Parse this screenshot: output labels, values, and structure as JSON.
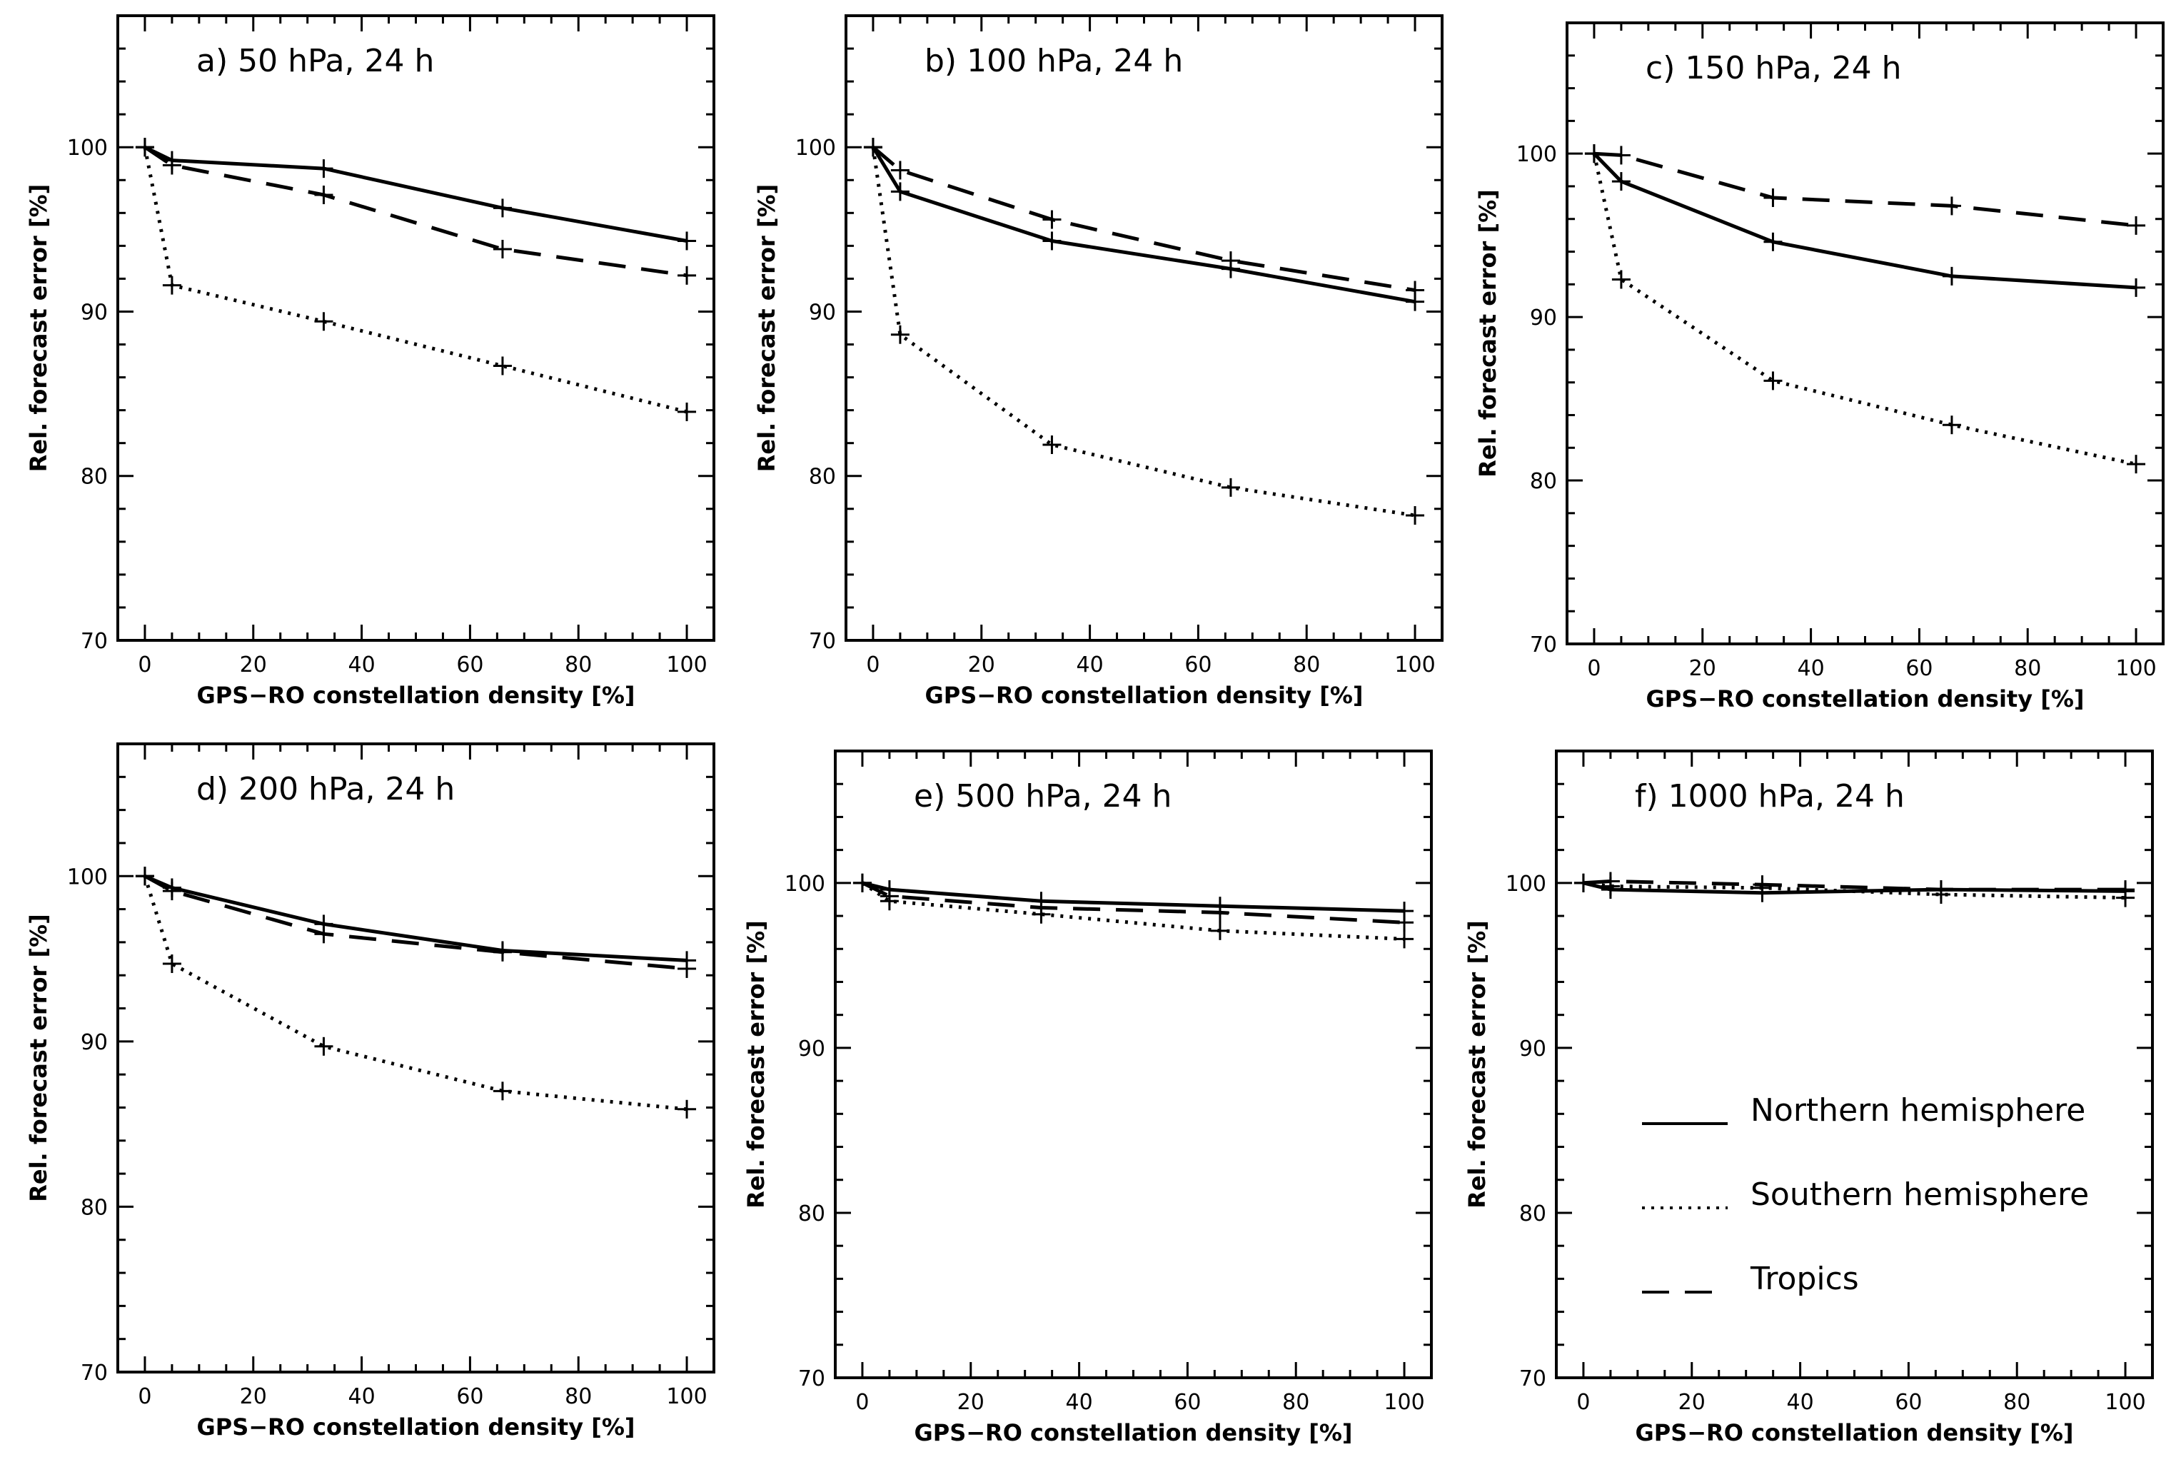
{
  "chart_data": [
    {
      "type": "line",
      "title": "a)   50 hPa,  24 h",
      "xlabel": "GPS−RO constellation density [%]",
      "ylabel": "Rel. forecast error [%]",
      "xlim": [
        -5,
        105
      ],
      "ylim": [
        70,
        108
      ],
      "xticks": [
        0,
        20,
        40,
        60,
        80,
        100
      ],
      "yticks": [
        70,
        80,
        90,
        100
      ],
      "x": [
        0,
        5,
        33,
        66,
        100
      ],
      "series": [
        {
          "name": "Northern hemisphere",
          "style": "solid",
          "values": [
            100,
            99.2,
            98.7,
            96.3,
            94.3
          ]
        },
        {
          "name": "Southern hemisphere",
          "style": "dotted",
          "values": [
            100,
            91.6,
            89.4,
            86.7,
            83.9
          ]
        },
        {
          "name": "Tropics",
          "style": "dashed",
          "values": [
            100,
            98.9,
            97.1,
            93.8,
            92.2
          ]
        }
      ]
    },
    {
      "type": "line",
      "title": "b)   100 hPa,  24 h",
      "xlabel": "GPS−RO constellation density [%]",
      "ylabel": "Rel. forecast error [%]",
      "xlim": [
        -5,
        105
      ],
      "ylim": [
        70,
        108
      ],
      "xticks": [
        0,
        20,
        40,
        60,
        80,
        100
      ],
      "yticks": [
        70,
        80,
        90,
        100
      ],
      "x": [
        0,
        5,
        33,
        66,
        100
      ],
      "series": [
        {
          "name": "Northern hemisphere",
          "style": "solid",
          "values": [
            100,
            97.3,
            94.3,
            92.6,
            90.6
          ]
        },
        {
          "name": "Southern hemisphere",
          "style": "dotted",
          "values": [
            100,
            88.6,
            81.9,
            79.3,
            77.6
          ]
        },
        {
          "name": "Tropics",
          "style": "dashed",
          "values": [
            100,
            98.6,
            95.6,
            93.1,
            91.3
          ]
        }
      ]
    },
    {
      "type": "line",
      "title": "c)   150 hPa,  24 h",
      "xlabel": "GPS−RO constellation density [%]",
      "ylabel": "Rel. forecast error [%]",
      "xlim": [
        -5,
        105
      ],
      "ylim": [
        70,
        108
      ],
      "xticks": [
        0,
        20,
        40,
        60,
        80,
        100
      ],
      "yticks": [
        70,
        80,
        90,
        100
      ],
      "x": [
        0,
        5,
        33,
        66,
        100
      ],
      "series": [
        {
          "name": "Northern hemisphere",
          "style": "solid",
          "values": [
            100,
            98.3,
            94.6,
            92.5,
            91.8
          ]
        },
        {
          "name": "Southern hemisphere",
          "style": "dotted",
          "values": [
            100,
            92.3,
            86.1,
            83.4,
            81.0
          ]
        },
        {
          "name": "Tropics",
          "style": "dashed",
          "values": [
            100,
            99.9,
            97.3,
            96.8,
            95.6
          ]
        }
      ]
    },
    {
      "type": "line",
      "title": "d)   200 hPa,  24 h",
      "xlabel": "GPS−RO constellation density [%]",
      "ylabel": "Rel. forecast error [%]",
      "xlim": [
        -5,
        105
      ],
      "ylim": [
        70,
        108
      ],
      "xticks": [
        0,
        20,
        40,
        60,
        80,
        100
      ],
      "yticks": [
        70,
        80,
        90,
        100
      ],
      "x": [
        0,
        5,
        33,
        66,
        100
      ],
      "series": [
        {
          "name": "Northern hemisphere",
          "style": "solid",
          "values": [
            100,
            99.3,
            97.1,
            95.5,
            94.9
          ]
        },
        {
          "name": "Southern hemisphere",
          "style": "dotted",
          "values": [
            100,
            94.7,
            89.7,
            87.0,
            85.9
          ]
        },
        {
          "name": "Tropics",
          "style": "dashed",
          "values": [
            100,
            99.1,
            96.5,
            95.4,
            94.4
          ]
        }
      ]
    },
    {
      "type": "line",
      "title": "e)   500 hPa,  24 h",
      "xlabel": "GPS−RO constellation density [%]",
      "ylabel": "Rel. forecast error [%]",
      "xlim": [
        -5,
        105
      ],
      "ylim": [
        70,
        108
      ],
      "xticks": [
        0,
        20,
        40,
        60,
        80,
        100
      ],
      "yticks": [
        70,
        80,
        90,
        100
      ],
      "x": [
        0,
        5,
        33,
        66,
        100
      ],
      "series": [
        {
          "name": "Northern hemisphere",
          "style": "solid",
          "values": [
            100,
            99.6,
            98.9,
            98.6,
            98.3
          ]
        },
        {
          "name": "Southern hemisphere",
          "style": "dotted",
          "values": [
            100,
            98.9,
            98.1,
            97.1,
            96.6
          ]
        },
        {
          "name": "Tropics",
          "style": "dashed",
          "values": [
            100,
            99.2,
            98.5,
            98.2,
            97.6
          ]
        }
      ]
    },
    {
      "type": "line",
      "title": "f)   1000 hPa,  24 h",
      "xlabel": "GPS−RO constellation density [%]",
      "ylabel": "Rel. forecast error [%]",
      "xlim": [
        -5,
        105
      ],
      "ylim": [
        70,
        108
      ],
      "xticks": [
        0,
        20,
        40,
        60,
        80,
        100
      ],
      "yticks": [
        70,
        80,
        90,
        100
      ],
      "x": [
        0,
        5,
        33,
        66,
        100
      ],
      "series": [
        {
          "name": "Northern hemisphere",
          "style": "solid",
          "values": [
            100,
            99.6,
            99.4,
            99.6,
            99.5
          ]
        },
        {
          "name": "Southern hemisphere",
          "style": "dotted",
          "values": [
            100,
            99.8,
            99.7,
            99.3,
            99.1
          ]
        },
        {
          "name": "Tropics",
          "style": "dashed",
          "values": [
            100,
            100.1,
            99.9,
            99.6,
            99.6
          ]
        }
      ]
    }
  ],
  "legend": {
    "placement": "panel-f-lower-right",
    "entries": [
      {
        "label": "Northern hemisphere",
        "style": "solid"
      },
      {
        "label": "Southern hemisphere",
        "style": "dotted"
      },
      {
        "label": "Tropics",
        "style": "dashed"
      }
    ]
  }
}
